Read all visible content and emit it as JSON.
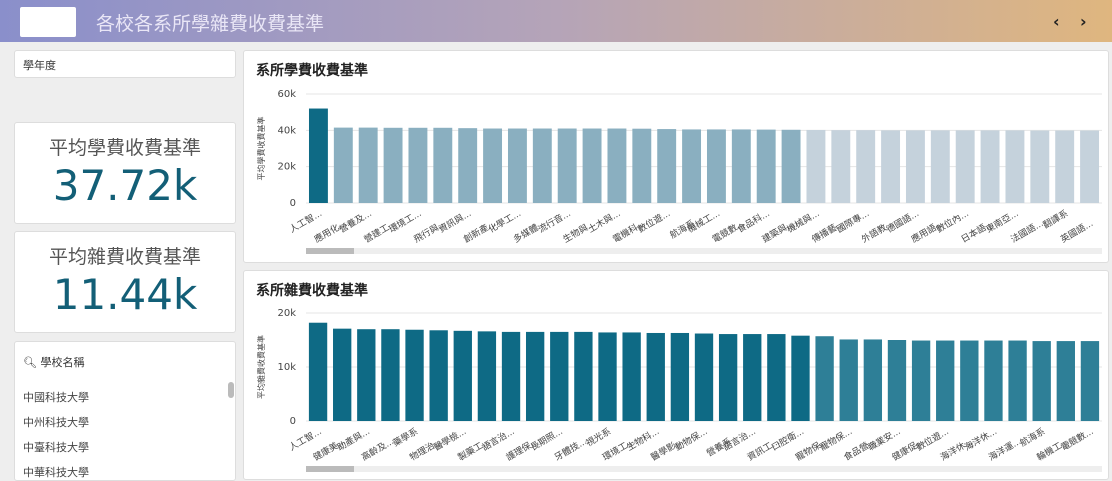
{
  "header": {
    "title": "各校各系所學雜費收費基準"
  },
  "filter": {
    "label": "學年度"
  },
  "kpis": [
    {
      "label": "平均學費收費基準",
      "value": "37.72k"
    },
    {
      "label": "平均雜費收費基準",
      "value": "11.44k"
    }
  ],
  "school_list": {
    "label": "學校名稱",
    "items": [
      "中國科技大學",
      "中州科技大學",
      "中臺科技大學",
      "中華科技大學"
    ]
  },
  "chart_data": [
    {
      "type": "bar",
      "title": "系所學費收費基準",
      "y_label": "平均學費收費基準",
      "categories": [
        "人工智...",
        "應用化...",
        "營養及...",
        "營建工...",
        "環境工...",
        "飛行與...",
        "資訊與...",
        "創新產...",
        "化學工...",
        "多媒體...",
        "流行音...",
        "生物與...",
        "土木與...",
        "電機科...",
        "數位遊...",
        "航海系",
        "機械工...",
        "電競數...",
        "食品科...",
        "建築與...",
        "機械與...",
        "傳播藝...",
        "國際專...",
        "外語教...",
        "德國語...",
        "應用語...",
        "數位內...",
        "日本語...",
        "東南亞...",
        "法國語...",
        "翻譯系",
        "英國語..."
      ],
      "values": [
        52000,
        41500,
        41500,
        41400,
        41400,
        41400,
        41200,
        41000,
        41000,
        41000,
        41000,
        41000,
        41000,
        40900,
        40700,
        40500,
        40500,
        40500,
        40400,
        40300,
        40200,
        40100,
        40100,
        40000,
        40000,
        40000,
        40000,
        40000,
        40000,
        39900,
        39900,
        39900
      ],
      "colors": [
        "#0e6a85",
        "#8aafc0",
        "#8aafc0",
        "#8aafc0",
        "#8aafc0",
        "#8aafc0",
        "#8aafc0",
        "#8aafc0",
        "#8aafc0",
        "#8aafc0",
        "#8aafc0",
        "#8aafc0",
        "#8aafc0",
        "#8aafc0",
        "#8aafc0",
        "#8aafc0",
        "#8aafc0",
        "#8aafc0",
        "#8aafc0",
        "#8aafc0",
        "#c5d2dc",
        "#c5d2dc",
        "#c5d2dc",
        "#c5d2dc",
        "#c5d2dc",
        "#c5d2dc",
        "#c5d2dc",
        "#c5d2dc",
        "#c5d2dc",
        "#c5d2dc",
        "#c5d2dc",
        "#c5d2dc"
      ],
      "ylim": [
        0,
        60000
      ],
      "yticks": [
        0,
        {
          "value": 20000,
          "label": "20k"
        },
        {
          "value": 40000,
          "label": "40k"
        },
        {
          "value": 60000,
          "label": "60k"
        }
      ],
      "grid": true
    },
    {
      "type": "bar",
      "title": "系所雜費收費基準",
      "y_label": "平均雜費收費基準",
      "categories": [
        "人工智...",
        "健康美...",
        "助產與...",
        "高齡及...",
        "藥學系",
        "物理治...",
        "醫學檢...",
        "製藥工...",
        "語言治...",
        "護理保...",
        "長期照...",
        "牙體技...",
        "視光系",
        "環境工...",
        "生物科...",
        "醫學影...",
        "動物保...",
        "營養系",
        "語言治...",
        "資訊工...",
        "口腔衛...",
        "寵物保...",
        "寵物保...",
        "食品營...",
        "職業安...",
        "健康促...",
        "數位遊...",
        "海洋休...",
        "海洋休...",
        "海洋運...",
        "航海系",
        "輪機工...",
        "電競數..."
      ],
      "values": [
        18200,
        17100,
        17000,
        17000,
        16900,
        16800,
        16700,
        16600,
        16500,
        16500,
        16500,
        16500,
        16400,
        16400,
        16300,
        16300,
        16200,
        16100,
        16100,
        16100,
        15800,
        15700,
        15100,
        15100,
        15000,
        14900,
        14900,
        14900,
        14900,
        14900,
        14800,
        14800,
        14800
      ],
      "colors": [
        "#0e6a85",
        "#0e6a85",
        "#0e6a85",
        "#0e6a85",
        "#0e6a85",
        "#0e6a85",
        "#0e6a85",
        "#0e6a85",
        "#0e6a85",
        "#0e6a85",
        "#0e6a85",
        "#0e6a85",
        "#0e6a85",
        "#0e6a85",
        "#0e6a85",
        "#0e6a85",
        "#0e6a85",
        "#0e6a85",
        "#0e6a85",
        "#0e6a85",
        "#0e6a85",
        "#2e7f97",
        "#2e7f97",
        "#2e7f97",
        "#2e7f97",
        "#2e7f97",
        "#2e7f97",
        "#2e7f97",
        "#2e7f97",
        "#2e7f97",
        "#2e7f97",
        "#2e7f97",
        "#2e7f97"
      ],
      "ylim": [
        0,
        20000
      ],
      "yticks": [
        0,
        {
          "value": 10000,
          "label": "10k"
        },
        {
          "value": 20000,
          "label": "20k"
        }
      ],
      "grid": true
    }
  ]
}
